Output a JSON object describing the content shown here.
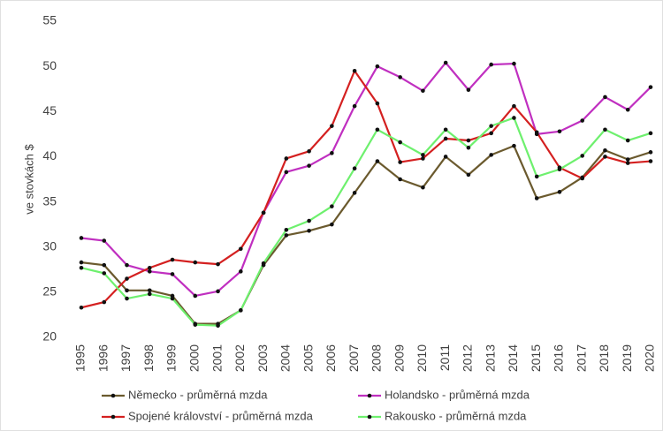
{
  "chart_data": {
    "type": "line",
    "y_label": "ve stovkách $",
    "categories": [
      "1995",
      "1996",
      "1997",
      "1998",
      "1999",
      "2000",
      "2001",
      "2002",
      "2003",
      "2004",
      "2005",
      "2006",
      "2007",
      "2008",
      "2009",
      "2010",
      "2011",
      "2012",
      "2013",
      "2014",
      "2015",
      "2016",
      "2017",
      "2018",
      "2019",
      "2020"
    ],
    "series": [
      {
        "name": "Německo - průměrná mzda",
        "color": "#6b5a2e",
        "values": [
          28.3,
          28.0,
          25.2,
          25.2,
          24.6,
          21.5,
          21.5,
          23.0,
          28.0,
          31.3,
          31.8,
          32.5,
          36.0,
          39.5,
          37.5,
          36.6,
          40.0,
          38.0,
          40.2,
          41.2,
          35.4,
          36.1,
          37.7,
          40.7,
          39.7,
          40.5
        ]
      },
      {
        "name": "Holandsko - průměrná mzda",
        "color": "#c02fc0",
        "values": [
          31.0,
          30.7,
          28.0,
          27.3,
          27.0,
          24.6,
          25.1,
          27.3,
          33.8,
          38.3,
          39.0,
          40.4,
          45.6,
          50.0,
          48.8,
          47.3,
          50.4,
          47.4,
          50.2,
          50.3,
          42.5,
          42.8,
          44.0,
          46.6,
          45.2,
          47.7
        ]
      },
      {
        "name": "Spojené království - průměrná mzda",
        "color": "#d42020",
        "values": [
          23.3,
          23.9,
          26.5,
          27.7,
          28.6,
          28.3,
          28.1,
          29.8,
          33.8,
          39.8,
          40.6,
          43.4,
          49.5,
          45.9,
          39.4,
          39.8,
          42.0,
          41.8,
          42.6,
          45.6,
          42.7,
          38.8,
          37.6,
          40.0,
          39.3,
          39.5
        ]
      },
      {
        "name": "Rakousko - průměrná mzda",
        "color": "#6ef06e",
        "values": [
          27.7,
          27.1,
          24.3,
          24.8,
          24.3,
          21.4,
          21.3,
          23.0,
          28.2,
          31.9,
          32.9,
          34.5,
          38.7,
          43.0,
          41.6,
          40.2,
          43.0,
          41.0,
          43.4,
          44.3,
          37.8,
          38.6,
          40.1,
          43.0,
          41.8,
          42.6
        ]
      }
    ],
    "ylim": [
      20,
      55
    ],
    "yticks": [
      20,
      25,
      30,
      35,
      40,
      45,
      50,
      55
    ],
    "grid": false,
    "marker_color": "#111111"
  }
}
